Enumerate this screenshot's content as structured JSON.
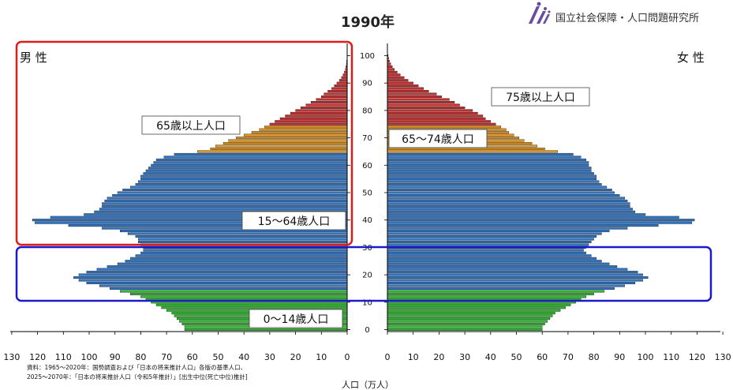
{
  "header": {
    "title": "1990年",
    "institution": "国立社会保障・人口問題研究所"
  },
  "sex_labels": {
    "male": "男 性",
    "female": "女 性"
  },
  "source": [
    "資料：1965～2020年：国勢調査および「日本の将来推計人口」各版の基準人口、",
    "2025～2070年：「日本の将来推計人口（令和5年推計）」[出生中位(死亡中位)推計]"
  ],
  "colors": {
    "age_0_14": "#2eb82e",
    "age_15_64": "#2e75c7",
    "age_65_74": "#e0931d",
    "age_75_plus": "#cc2b2b",
    "highlight_red": "#dd1c1c",
    "highlight_blue": "#1a1ac8",
    "logo": "#6a4c9c"
  },
  "chart_data": {
    "type": "bar",
    "orientation": "horizontal-population-pyramid",
    "title": "1990年",
    "xlabel": "人口（万人）",
    "ylabel": "",
    "xlim": [
      0,
      130
    ],
    "ylim": [
      0,
      105
    ],
    "x_ticks": [
      130,
      120,
      110,
      100,
      90,
      80,
      70,
      60,
      50,
      40,
      30,
      20,
      10,
      0
    ],
    "x_ticks_right": [
      0,
      10,
      20,
      30,
      40,
      50,
      60,
      70,
      80,
      90,
      100,
      110,
      120,
      130
    ],
    "age_ticks": [
      0,
      10,
      20,
      30,
      40,
      50,
      60,
      70,
      80,
      90,
      100
    ],
    "ages": [
      0,
      1,
      2,
      3,
      4,
      5,
      6,
      7,
      8,
      9,
      10,
      11,
      12,
      13,
      14,
      15,
      16,
      17,
      18,
      19,
      20,
      21,
      22,
      23,
      24,
      25,
      26,
      27,
      28,
      29,
      30,
      31,
      32,
      33,
      34,
      35,
      36,
      37,
      38,
      39,
      40,
      41,
      42,
      43,
      44,
      45,
      46,
      47,
      48,
      49,
      50,
      51,
      52,
      53,
      54,
      55,
      56,
      57,
      58,
      59,
      60,
      61,
      62,
      63,
      64,
      65,
      66,
      67,
      68,
      69,
      70,
      71,
      72,
      73,
      74,
      75,
      76,
      77,
      78,
      79,
      80,
      81,
      82,
      83,
      84,
      85,
      86,
      87,
      88,
      89,
      90,
      91,
      92,
      93,
      94,
      95,
      96,
      97,
      98,
      99,
      100
    ],
    "series": [
      {
        "name": "男 性",
        "values": [
          63,
          63,
          64,
          65,
          66,
          67,
          68,
          70,
          72,
          74,
          76,
          78,
          80,
          84,
          88,
          92,
          96,
          101,
          104,
          106,
          104,
          101,
          97,
          93,
          89,
          86,
          84,
          82,
          80,
          79,
          79,
          80,
          81,
          81,
          82,
          85,
          88,
          95,
          108,
          121,
          122,
          115,
          102,
          98,
          96,
          95,
          95,
          94,
          93,
          91,
          89,
          87,
          84,
          82,
          81,
          80,
          80,
          79,
          78,
          77,
          76,
          75,
          74,
          71,
          67,
          58,
          53,
          51,
          48,
          46,
          43,
          40,
          37,
          34,
          32,
          30,
          28,
          26,
          24,
          22,
          20,
          18,
          16,
          14,
          12,
          10,
          9,
          7.5,
          6,
          5,
          4,
          3,
          2.2,
          1.6,
          1.1,
          0.7,
          0.5,
          0.3,
          0.2,
          0.1,
          0.05
        ]
      },
      {
        "name": "女 性",
        "values": [
          60,
          60,
          61,
          62,
          63,
          64,
          65,
          67,
          69,
          71,
          73,
          75,
          77,
          80,
          84,
          88,
          92,
          96,
          99,
          101,
          99,
          97,
          93,
          89,
          86,
          83,
          81,
          79,
          77,
          76,
          77,
          78,
          79,
          80,
          81,
          83,
          86,
          93,
          105,
          118,
          119,
          113,
          100,
          96,
          95,
          94,
          94,
          93,
          92,
          90,
          88,
          87,
          85,
          83,
          82,
          81,
          81,
          80,
          79,
          79,
          78,
          78,
          77,
          75,
          72,
          66,
          61,
          58,
          56,
          53,
          51,
          49,
          47,
          46,
          44,
          42,
          40,
          38,
          37,
          35,
          33,
          30,
          28,
          26,
          24,
          21,
          19,
          16,
          14,
          12,
          10,
          8,
          6.5,
          5,
          3.8,
          2.7,
          1.9,
          1.3,
          0.8,
          0.5,
          0.3
        ]
      }
    ],
    "age_groups": [
      {
        "label": "0～14歳人口",
        "from": 0,
        "to": 14
      },
      {
        "label": "15～64歳人口",
        "from": 15,
        "to": 64
      },
      {
        "label": "65～74歳人口",
        "from": 65,
        "to": 74
      },
      {
        "label": "75歳以上人口",
        "from": 75,
        "to": 100
      }
    ],
    "highlights": [
      {
        "name": "red-frame",
        "age_from": 31,
        "age_to": 105,
        "side": "male"
      },
      {
        "name": "blue-frame",
        "age_from": 11,
        "age_to": 29,
        "side": "both"
      }
    ],
    "legend": "none",
    "grid": false
  }
}
